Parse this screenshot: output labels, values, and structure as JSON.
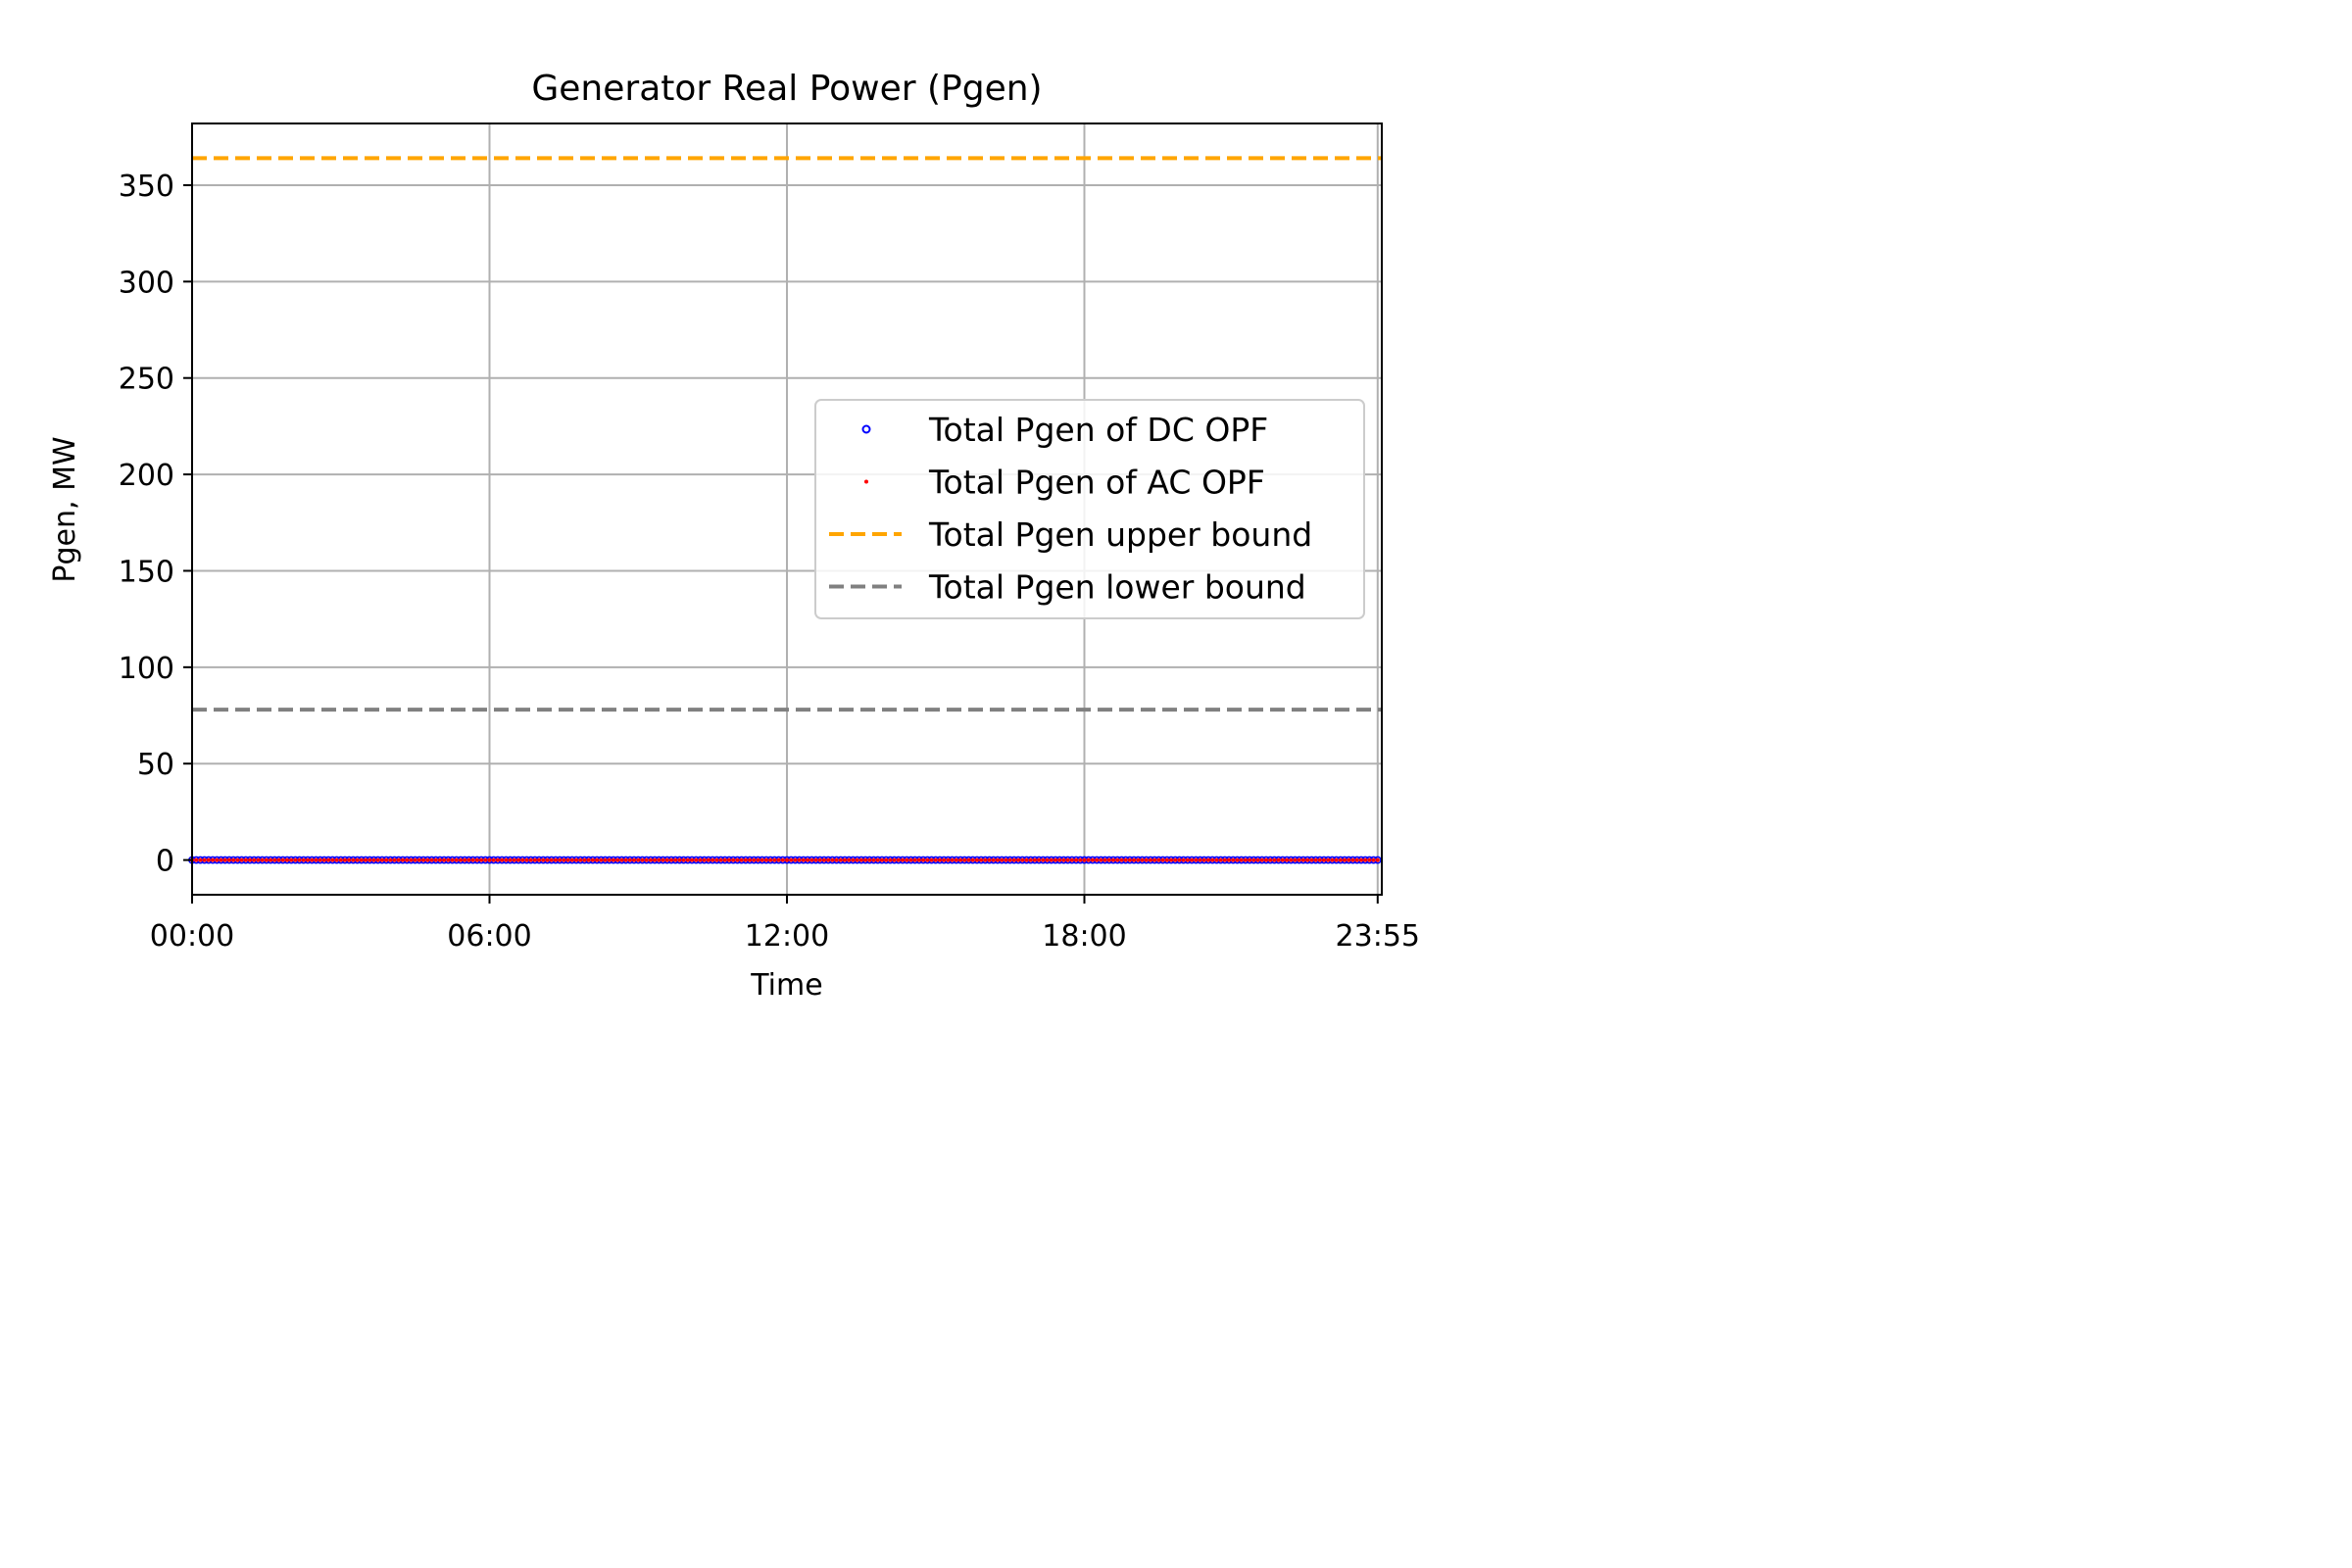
{
  "chart_data": {
    "type": "scatter",
    "title": "Generator Real Power (Pgen)",
    "xlabel": "Time",
    "ylabel": "Pgen, MW",
    "x_ticks": [
      "00:00",
      "06:00",
      "12:00",
      "18:00",
      "23:55"
    ],
    "x_tick_minutes": [
      0,
      360,
      720,
      1080,
      1435
    ],
    "xlim_minutes": [
      -0.0,
      1440
    ],
    "ylim": [
      -18,
      382
    ],
    "y_ticks": [
      0,
      50,
      100,
      150,
      200,
      250,
      300,
      350
    ],
    "grid": true,
    "legend_position": "center-right",
    "series": [
      {
        "name": "Total Pgen of DC OPF",
        "kind": "points",
        "marker": "open-circle",
        "color": "#0000ff",
        "x_start_minutes": 0,
        "x_step_minutes": 5,
        "x_end_minutes": 1435,
        "y_constant": 0
      },
      {
        "name": "Total Pgen of AC OPF",
        "kind": "points",
        "marker": "dot",
        "color": "#ff0000",
        "x_start_minutes": 0,
        "x_step_minutes": 5,
        "x_end_minutes": 1435,
        "y_constant": 0
      },
      {
        "name": "Total Pgen upper bound",
        "kind": "hline",
        "style": "dashed",
        "color": "#ffa500",
        "y": 364
      },
      {
        "name": "Total Pgen lower bound",
        "kind": "hline",
        "style": "dashed",
        "color": "#808080",
        "y": 78
      }
    ]
  }
}
